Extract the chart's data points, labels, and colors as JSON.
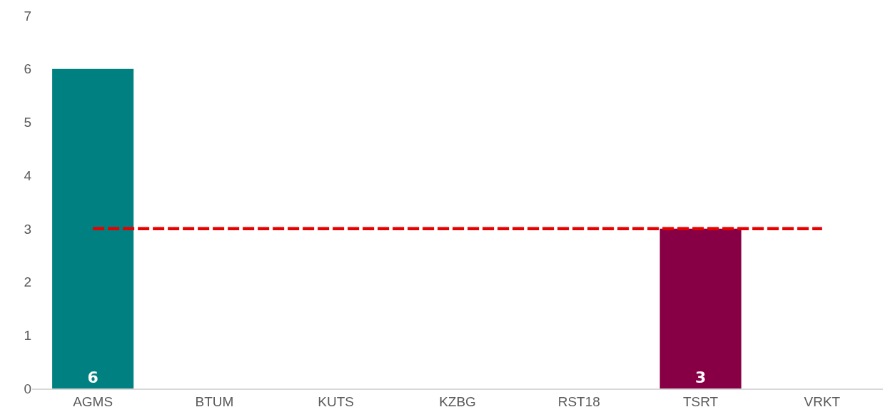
{
  "chart_data": {
    "type": "bar",
    "categories": [
      "AGMS",
      "BTUM",
      "KUTS",
      "KZBG",
      "RST18",
      "TSRT",
      "VRKT"
    ],
    "series": [
      {
        "colors": [
          "#008080",
          "#d77a97",
          "#b0b0b0",
          "#d77a97",
          "#7fc4c4",
          "#870045",
          "#d77a97"
        ],
        "values": [
          6,
          0,
          0,
          0,
          0,
          3,
          0
        ],
        "value_labels": [
          "6",
          null,
          null,
          null,
          null,
          "3",
          null
        ]
      },
      {
        "type": "line",
        "color": "#e60000",
        "values": [
          3,
          3,
          3,
          3,
          3,
          3,
          3
        ],
        "line_style": "dashed",
        "marker": "none"
      }
    ],
    "ylim": [
      0,
      7
    ],
    "yticks": [
      0,
      1,
      2,
      3,
      4,
      5,
      6,
      7
    ]
  }
}
